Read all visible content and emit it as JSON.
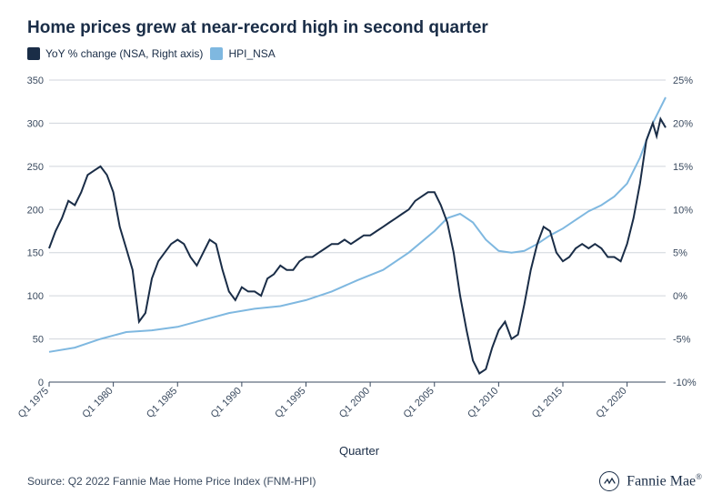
{
  "title": "Home prices grew at near-record high in second quarter",
  "legend": {
    "series1": {
      "label": "YoY % change (NSA, Right axis)",
      "color": "#1a2d47"
    },
    "series2": {
      "label": "HPI_NSA",
      "color": "#7fb8e0"
    }
  },
  "chart": {
    "type": "line",
    "background_color": "#ffffff",
    "grid_color": "#d0d5dc",
    "axis_color": "#3a4a5f",
    "x_axis": {
      "label": "Quarter",
      "ticks": [
        "Q1 1975",
        "Q1 1980",
        "Q1 1985",
        "Q1 1990",
        "Q1 1995",
        "Q1 2000",
        "Q1 2005",
        "Q1 2010",
        "Q1 2015",
        "Q1 2020"
      ],
      "tick_positions": [
        0,
        5,
        10,
        15,
        20,
        25,
        30,
        35,
        40,
        45
      ],
      "range": [
        0,
        48
      ],
      "label_fontsize": 13,
      "tick_fontsize": 11,
      "tick_rotation": -45
    },
    "y_left": {
      "range": [
        0,
        350
      ],
      "ticks": [
        0,
        50,
        100,
        150,
        200,
        250,
        300,
        350
      ],
      "tick_fontsize": 11
    },
    "y_right": {
      "range": [
        -10,
        25
      ],
      "ticks": [
        -10,
        -5,
        0,
        5,
        10,
        15,
        20,
        25
      ],
      "tick_labels": [
        "-10%",
        "-5%",
        "0%",
        "5%",
        "10%",
        "15%",
        "20%",
        "25%"
      ],
      "tick_fontsize": 11
    },
    "series_yoy": {
      "name": "YoY % change (NSA, Right axis)",
      "axis": "right",
      "color": "#1a2d47",
      "line_width": 2,
      "data": [
        [
          0,
          5.5
        ],
        [
          0.5,
          7.5
        ],
        [
          1,
          9.0
        ],
        [
          1.5,
          11.0
        ],
        [
          2,
          10.5
        ],
        [
          2.5,
          12.0
        ],
        [
          3,
          14.0
        ],
        [
          3.5,
          14.5
        ],
        [
          4,
          15.0
        ],
        [
          4.5,
          14.0
        ],
        [
          5,
          12.0
        ],
        [
          5.5,
          8.0
        ],
        [
          6,
          5.5
        ],
        [
          6.5,
          3.0
        ],
        [
          7,
          -3.0
        ],
        [
          7.5,
          -2.0
        ],
        [
          8,
          2.0
        ],
        [
          8.5,
          4.0
        ],
        [
          9,
          5.0
        ],
        [
          9.5,
          6.0
        ],
        [
          10,
          6.5
        ],
        [
          10.5,
          6.0
        ],
        [
          11,
          4.5
        ],
        [
          11.5,
          3.5
        ],
        [
          12,
          5.0
        ],
        [
          12.5,
          6.5
        ],
        [
          13,
          6.0
        ],
        [
          13.5,
          3.0
        ],
        [
          14,
          0.5
        ],
        [
          14.5,
          -0.5
        ],
        [
          15,
          1.0
        ],
        [
          15.5,
          0.5
        ],
        [
          16,
          0.5
        ],
        [
          16.5,
          0.0
        ],
        [
          17,
          2.0
        ],
        [
          17.5,
          2.5
        ],
        [
          18,
          3.5
        ],
        [
          18.5,
          3.0
        ],
        [
          19,
          3.0
        ],
        [
          19.5,
          4.0
        ],
        [
          20,
          4.5
        ],
        [
          20.5,
          4.5
        ],
        [
          21,
          5.0
        ],
        [
          21.5,
          5.5
        ],
        [
          22,
          6.0
        ],
        [
          22.5,
          6.0
        ],
        [
          23,
          6.5
        ],
        [
          23.5,
          6.0
        ],
        [
          24,
          6.5
        ],
        [
          24.5,
          7.0
        ],
        [
          25,
          7.0
        ],
        [
          25.5,
          7.5
        ],
        [
          26,
          8.0
        ],
        [
          26.5,
          8.5
        ],
        [
          27,
          9.0
        ],
        [
          27.5,
          9.5
        ],
        [
          28,
          10.0
        ],
        [
          28.5,
          11.0
        ],
        [
          29,
          11.5
        ],
        [
          29.5,
          12.0
        ],
        [
          30,
          12.0
        ],
        [
          30.5,
          10.5
        ],
        [
          31,
          8.5
        ],
        [
          31.5,
          5.0
        ],
        [
          32,
          0.0
        ],
        [
          32.5,
          -4.0
        ],
        [
          33,
          -7.5
        ],
        [
          33.5,
          -9.0
        ],
        [
          34,
          -8.5
        ],
        [
          34.5,
          -6.0
        ],
        [
          35,
          -4.0
        ],
        [
          35.5,
          -3.0
        ],
        [
          36,
          -5.0
        ],
        [
          36.5,
          -4.5
        ],
        [
          37,
          -1.0
        ],
        [
          37.5,
          3.0
        ],
        [
          38,
          6.0
        ],
        [
          38.5,
          8.0
        ],
        [
          39,
          7.5
        ],
        [
          39.5,
          5.0
        ],
        [
          40,
          4.0
        ],
        [
          40.5,
          4.5
        ],
        [
          41,
          5.5
        ],
        [
          41.5,
          6.0
        ],
        [
          42,
          5.5
        ],
        [
          42.5,
          6.0
        ],
        [
          43,
          5.5
        ],
        [
          43.5,
          4.5
        ],
        [
          44,
          4.5
        ],
        [
          44.5,
          4.0
        ],
        [
          45,
          6.0
        ],
        [
          45.5,
          9.0
        ],
        [
          46,
          13.0
        ],
        [
          46.5,
          18.0
        ],
        [
          47,
          20.0
        ],
        [
          47.3,
          18.5
        ],
        [
          47.6,
          20.5
        ],
        [
          48,
          19.5
        ]
      ]
    },
    "series_hpi": {
      "name": "HPI_NSA",
      "axis": "left",
      "color": "#7fb8e0",
      "line_width": 2,
      "data": [
        [
          0,
          35
        ],
        [
          2,
          40
        ],
        [
          4,
          50
        ],
        [
          6,
          58
        ],
        [
          8,
          60
        ],
        [
          10,
          64
        ],
        [
          12,
          72
        ],
        [
          14,
          80
        ],
        [
          16,
          85
        ],
        [
          18,
          88
        ],
        [
          20,
          95
        ],
        [
          22,
          105
        ],
        [
          24,
          118
        ],
        [
          26,
          130
        ],
        [
          28,
          150
        ],
        [
          30,
          175
        ],
        [
          31,
          190
        ],
        [
          32,
          195
        ],
        [
          33,
          185
        ],
        [
          34,
          165
        ],
        [
          35,
          152
        ],
        [
          36,
          150
        ],
        [
          37,
          152
        ],
        [
          38,
          160
        ],
        [
          39,
          170
        ],
        [
          40,
          178
        ],
        [
          41,
          188
        ],
        [
          42,
          198
        ],
        [
          43,
          205
        ],
        [
          44,
          215
        ],
        [
          45,
          230
        ],
        [
          46,
          260
        ],
        [
          47,
          300
        ],
        [
          48,
          330
        ]
      ]
    }
  },
  "footer": {
    "source": "Source: Q2 2022 Fannie Mae Home Price Index (FNM-HPI)",
    "brand": "Fannie Mae"
  }
}
